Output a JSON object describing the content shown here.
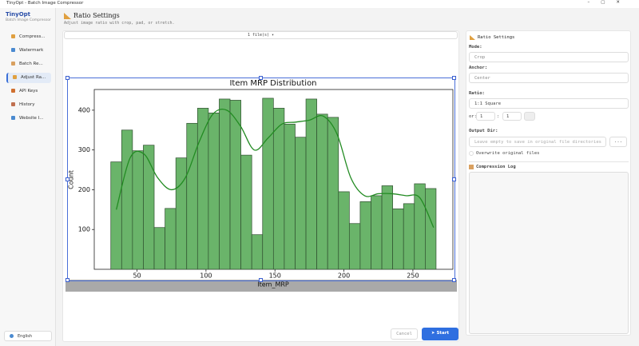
{
  "window": {
    "title": "TinyOpt - Batch Image Compressor"
  },
  "sidebar": {
    "app_name": "TinyOpt",
    "app_subtitle": "Batch Image Compressor",
    "items": [
      "Compress...",
      "Watermark",
      "Batch Re...",
      "Adjust Ra...",
      "API Keys",
      "History",
      "Website I..."
    ],
    "active": 3,
    "language": "English"
  },
  "header": {
    "title": "Ratio Settings",
    "subtitle": "Adjust image ratio with crop, pad, or stretch."
  },
  "preview": {
    "file_selector": "1 file(s) ▾",
    "chart": {
      "type": "histogram",
      "title": "Item MRP Distribution",
      "x_label": "Item_MRP",
      "y_label": "Count",
      "bins": [
        31.0,
        38.86,
        46.72,
        54.58,
        62.44,
        70.3,
        78.16,
        86.02,
        93.88,
        101.74,
        109.6,
        117.46,
        125.32,
        133.18,
        141.04,
        148.9,
        156.76,
        164.62,
        172.48,
        180.34,
        188.2,
        196.06,
        203.92,
        211.78,
        219.64,
        227.5,
        235.36,
        243.22,
        251.08,
        258.94,
        266.8
      ],
      "values": [
        270,
        350,
        298,
        312,
        105,
        153,
        280,
        367,
        405,
        393,
        428,
        425,
        287,
        87,
        430,
        405,
        365,
        332,
        428,
        390,
        382,
        195,
        115,
        170,
        185,
        210,
        152,
        165,
        215,
        203
      ],
      "color": "#6ab46a",
      "edge_color": "#2f4f2f",
      "kde": {
        "x": [
          35,
          45,
          55,
          65,
          75,
          85,
          95,
          105,
          115,
          125,
          135,
          145,
          155,
          165,
          175,
          185,
          195,
          205,
          215,
          225,
          235,
          245,
          255,
          265
        ],
        "values": [
          150,
          280,
          290,
          230,
          200,
          230,
          320,
          390,
          400,
          360,
          300,
          330,
          365,
          370,
          375,
          385,
          340,
          230,
          185,
          190,
          190,
          185,
          180,
          105
        ],
        "color": "#228b22"
      },
      "xlim": [
        19,
        279
      ],
      "ylim": [
        0,
        452
      ],
      "xticks": [
        50,
        100,
        150,
        200,
        250
      ],
      "yticks": [
        100,
        200,
        300,
        400
      ]
    }
  },
  "settings": {
    "title": "Ratio Settings",
    "mode_label": "Mode:",
    "mode": "Crop",
    "anchor_label": "Anchor:",
    "anchor": "Center",
    "ratio_label": "Ratio:",
    "ratio": "1:1 Square",
    "custom_label": "or:",
    "custom_width": 1,
    "separator": ":",
    "custom_height": 1,
    "output_label": "Output Dir:",
    "output_placeholder": "Leave empty to save in original file directories",
    "browse": "...",
    "overwrite": "Overwrite original files",
    "log_title": "Compression Log"
  },
  "actions": {
    "cancel": "Cancel",
    "start": "Start"
  }
}
